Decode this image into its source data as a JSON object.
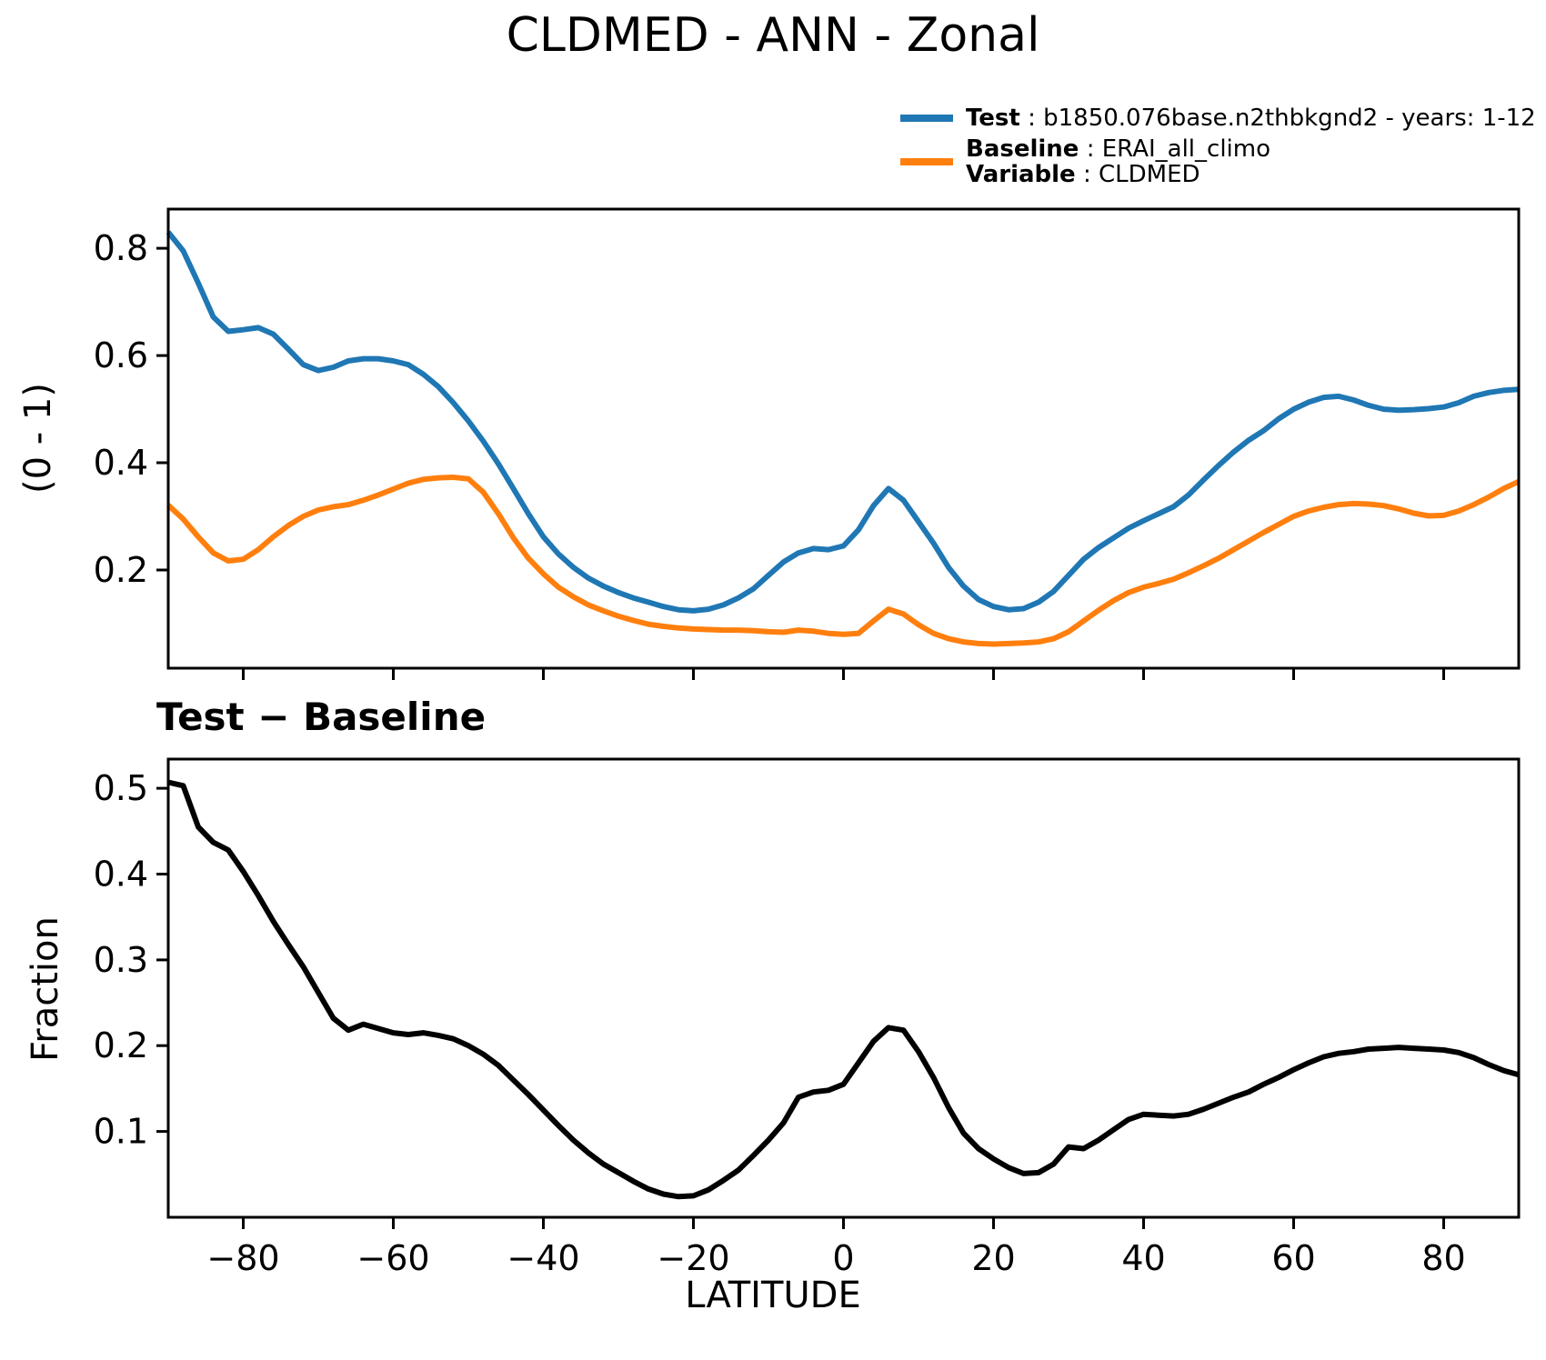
{
  "title": "CLDMED - ANN - Zonal",
  "legend": {
    "sep": " : ",
    "rows": [
      {
        "label": "Test",
        "value": "b1850.076base.n2thbkgnd2 - years: 1-12"
      },
      {
        "label": "Baseline",
        "value": "ERAI_all_climo"
      },
      {
        "label": "Variable",
        "value": "CLDMED"
      }
    ]
  },
  "colors": {
    "test": "#1f77b4",
    "baseline": "#ff7f0e",
    "diff": "#000000"
  },
  "diff_heading": "Test − Baseline",
  "chart_data": [
    {
      "type": "line",
      "title": "CLDMED - ANN - Zonal",
      "xlabel": "",
      "ylabel": "(0 - 1)",
      "xlim": [
        -90,
        90
      ],
      "ylim": [
        0.017,
        0.873
      ],
      "grid": false,
      "legend_position": "upper right, above axes",
      "x": [
        -90,
        -88,
        -86,
        -84,
        -82,
        -80,
        -78,
        -76,
        -74,
        -72,
        -70,
        -68,
        -66,
        -64,
        -62,
        -60,
        -58,
        -56,
        -54,
        -52,
        -50,
        -48,
        -46,
        -44,
        -42,
        -40,
        -38,
        -36,
        -34,
        -32,
        -30,
        -28,
        -26,
        -24,
        -22,
        -20,
        -18,
        -16,
        -14,
        -12,
        -10,
        -8,
        -6,
        -4,
        -2,
        0,
        2,
        4,
        6,
        8,
        10,
        12,
        14,
        16,
        18,
        20,
        22,
        24,
        26,
        28,
        30,
        32,
        34,
        36,
        38,
        40,
        42,
        44,
        46,
        48,
        50,
        52,
        54,
        56,
        58,
        60,
        62,
        64,
        66,
        68,
        70,
        72,
        74,
        76,
        78,
        80,
        82,
        84,
        86,
        88,
        90
      ],
      "series": [
        {
          "name": "Test",
          "color": "#1f77b4",
          "values": [
            0.83,
            0.795,
            0.735,
            0.672,
            0.645,
            0.648,
            0.652,
            0.64,
            0.612,
            0.583,
            0.572,
            0.578,
            0.59,
            0.594,
            0.594,
            0.59,
            0.583,
            0.565,
            0.542,
            0.512,
            0.478,
            0.44,
            0.398,
            0.352,
            0.305,
            0.262,
            0.23,
            0.205,
            0.185,
            0.17,
            0.158,
            0.148,
            0.14,
            0.132,
            0.126,
            0.124,
            0.127,
            0.135,
            0.148,
            0.165,
            0.19,
            0.215,
            0.232,
            0.24,
            0.238,
            0.245,
            0.275,
            0.32,
            0.352,
            0.33,
            0.29,
            0.25,
            0.205,
            0.17,
            0.145,
            0.132,
            0.126,
            0.128,
            0.14,
            0.16,
            0.19,
            0.22,
            0.242,
            0.26,
            0.278,
            0.292,
            0.305,
            0.318,
            0.34,
            0.368,
            0.395,
            0.42,
            0.442,
            0.46,
            0.482,
            0.5,
            0.513,
            0.522,
            0.524,
            0.517,
            0.507,
            0.5,
            0.498,
            0.499,
            0.501,
            0.504,
            0.512,
            0.524,
            0.531,
            0.535,
            0.537
          ]
        },
        {
          "name": "Baseline",
          "color": "#ff7f0e",
          "values": [
            0.321,
            0.295,
            0.262,
            0.232,
            0.217,
            0.22,
            0.238,
            0.262,
            0.283,
            0.3,
            0.312,
            0.318,
            0.322,
            0.33,
            0.34,
            0.351,
            0.362,
            0.369,
            0.372,
            0.373,
            0.37,
            0.345,
            0.305,
            0.26,
            0.222,
            0.193,
            0.168,
            0.15,
            0.135,
            0.124,
            0.114,
            0.106,
            0.099,
            0.095,
            0.092,
            0.09,
            0.089,
            0.088,
            0.088,
            0.087,
            0.085,
            0.084,
            0.088,
            0.086,
            0.082,
            0.08,
            0.082,
            0.105,
            0.127,
            0.118,
            0.098,
            0.082,
            0.072,
            0.066,
            0.063,
            0.062,
            0.063,
            0.064,
            0.066,
            0.072,
            0.085,
            0.105,
            0.125,
            0.143,
            0.158,
            0.168,
            0.175,
            0.183,
            0.195,
            0.208,
            0.222,
            0.238,
            0.254,
            0.27,
            0.285,
            0.3,
            0.31,
            0.317,
            0.322,
            0.324,
            0.323,
            0.32,
            0.314,
            0.306,
            0.301,
            0.302,
            0.31,
            0.322,
            0.336,
            0.352,
            0.365
          ]
        }
      ],
      "yticks": [
        0.2,
        0.4,
        0.6,
        0.8
      ],
      "ytick_labels": [
        "0.2",
        "0.4",
        "0.6",
        "0.8"
      ],
      "xticks": [
        -80,
        -60,
        -40,
        -20,
        0,
        20,
        40,
        60,
        80
      ],
      "xtick_labels": null
    },
    {
      "type": "line",
      "title": "Test − Baseline",
      "xlabel": "LATITUDE",
      "ylabel": "Fraction",
      "xlim": [
        -90,
        90
      ],
      "ylim": [
        0.0,
        0.534
      ],
      "grid": false,
      "x": [
        -90,
        -88,
        -86,
        -84,
        -82,
        -80,
        -78,
        -76,
        -74,
        -72,
        -70,
        -68,
        -66,
        -64,
        -62,
        -60,
        -58,
        -56,
        -54,
        -52,
        -50,
        -48,
        -46,
        -44,
        -42,
        -40,
        -38,
        -36,
        -34,
        -32,
        -30,
        -28,
        -26,
        -24,
        -22,
        -20,
        -18,
        -16,
        -14,
        -12,
        -10,
        -8,
        -6,
        -4,
        -2,
        0,
        2,
        4,
        6,
        8,
        10,
        12,
        14,
        16,
        18,
        20,
        22,
        24,
        26,
        28,
        30,
        32,
        34,
        36,
        38,
        40,
        42,
        44,
        46,
        48,
        50,
        52,
        54,
        56,
        58,
        60,
        62,
        64,
        66,
        68,
        70,
        72,
        74,
        76,
        78,
        80,
        82,
        84,
        86,
        88,
        90
      ],
      "series": [
        {
          "name": "Test − Baseline",
          "color": "#000000",
          "values": [
            0.507,
            0.503,
            0.455,
            0.437,
            0.428,
            0.403,
            0.375,
            0.345,
            0.318,
            0.292,
            0.262,
            0.232,
            0.218,
            0.225,
            0.22,
            0.215,
            0.213,
            0.215,
            0.212,
            0.208,
            0.2,
            0.19,
            0.177,
            0.16,
            0.143,
            0.125,
            0.107,
            0.09,
            0.075,
            0.062,
            0.052,
            0.042,
            0.033,
            0.027,
            0.024,
            0.025,
            0.032,
            0.043,
            0.055,
            0.072,
            0.09,
            0.11,
            0.14,
            0.146,
            0.148,
            0.155,
            0.18,
            0.205,
            0.221,
            0.218,
            0.193,
            0.163,
            0.128,
            0.098,
            0.08,
            0.068,
            0.058,
            0.051,
            0.052,
            0.062,
            0.082,
            0.08,
            0.09,
            0.102,
            0.114,
            0.12,
            0.119,
            0.118,
            0.12,
            0.126,
            0.133,
            0.14,
            0.146,
            0.155,
            0.163,
            0.172,
            0.18,
            0.187,
            0.191,
            0.193,
            0.196,
            0.197,
            0.198,
            0.197,
            0.196,
            0.195,
            0.192,
            0.186,
            0.178,
            0.171,
            0.166
          ]
        }
      ],
      "yticks": [
        0.1,
        0.2,
        0.3,
        0.4,
        0.5
      ],
      "ytick_labels": [
        "0.1",
        "0.2",
        "0.3",
        "0.4",
        "0.5"
      ],
      "xticks": [
        -80,
        -60,
        -40,
        -20,
        0,
        20,
        40,
        60,
        80
      ],
      "xtick_labels": [
        "−80",
        "−60",
        "−40",
        "−20",
        "0",
        "20",
        "40",
        "60",
        "80"
      ]
    }
  ]
}
